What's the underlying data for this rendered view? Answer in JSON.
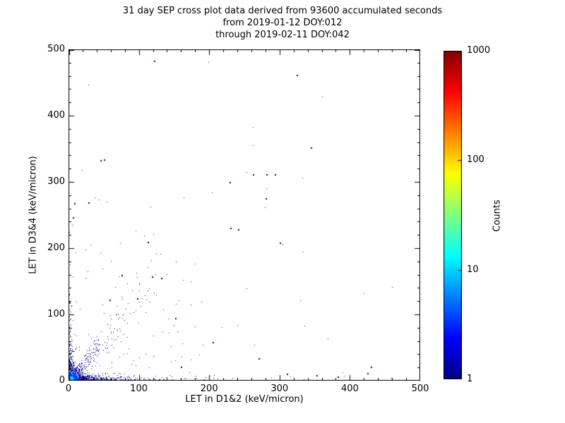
{
  "title": {
    "line1": "31 day SEP cross plot data derived from 93600 accumulated seconds",
    "line2": "from 2019-01-12 DOY:012",
    "line3": "through 2019-02-11 DOY:042"
  },
  "chart_data": {
    "type": "scatter",
    "title": "31 day SEP cross plot data derived from 93600 accumulated seconds from 2019-01-12 DOY:012 through 2019-02-11 DOY:042",
    "xlabel": "LET in D1&2 (keV/micron)",
    "ylabel": "LET in D3&4 (keV/micron)",
    "xlim": [
      0,
      500
    ],
    "ylim": [
      0,
      500
    ],
    "x_ticks": [
      0,
      100,
      200,
      300,
      400,
      500
    ],
    "y_ticks": [
      0,
      100,
      200,
      300,
      400,
      500
    ],
    "grid": false,
    "colorbar": {
      "label": "Counts",
      "scale": "log",
      "min": 1,
      "max": 1000,
      "ticks": [
        1,
        10,
        100,
        1000
      ],
      "colormap": "jet",
      "gradient": [
        [
          0.0,
          "#000080"
        ],
        [
          0.125,
          "#0000ff"
        ],
        [
          0.375,
          "#00ffff"
        ],
        [
          0.625,
          "#ffff00"
        ],
        [
          0.875,
          "#ff0000"
        ],
        [
          1.0,
          "#800000"
        ]
      ]
    },
    "point_color_min_count": "#000080",
    "distribution": {
      "description": "Dense low-count (navy) cluster at origin with high-count cyan/green core, heavy band along x-axis to ~300 keV/micron, band along y-axis to ~280, diffuse diagonal ion track to ~(120,160), sparse single-count events across plane",
      "seed": 20190112,
      "clusters": [
        {
          "name": "x-axis-band",
          "kind": "exp2d",
          "n": 950,
          "sx": 35,
          "sy": 2.5,
          "xmax": 460,
          "ymax": 14
        },
        {
          "name": "y-axis-band",
          "kind": "exp2d",
          "n": 230,
          "sx": 2.0,
          "sy": 40,
          "xmax": 12,
          "ymax": 300
        },
        {
          "name": "origin-blob",
          "kind": "exp2d",
          "n": 950,
          "sx": 7,
          "sy": 7,
          "xmax": 60,
          "ymax": 60
        },
        {
          "name": "diagonal-track",
          "kind": "diag",
          "n": 260,
          "scale": 35,
          "tmax": 170,
          "slope": 1.25,
          "jitter": 0.35
        },
        {
          "name": "sparse-field",
          "kind": "exp2d",
          "n": 140,
          "sx": 110,
          "sy": 110,
          "xmax": 500,
          "ymax": 500
        }
      ],
      "color_rules": [
        {
          "rmax": 3,
          "color": "#00cc66"
        },
        {
          "rmax": 8,
          "color": "#00ccff"
        },
        {
          "rmax": 16,
          "color": "#0040ff"
        },
        {
          "rmax": 99999,
          "color": "#000080"
        }
      ],
      "outliers": [
        [
          121,
          483
        ],
        [
          324,
          462
        ],
        [
          344,
          352
        ],
        [
          281,
          312
        ],
        [
          293,
          312
        ],
        [
          262,
          312
        ],
        [
          229,
          300
        ],
        [
          280,
          276
        ],
        [
          300,
          209
        ],
        [
          230,
          231
        ],
        [
          241,
          229
        ],
        [
          50,
          334
        ],
        [
          45,
          333
        ],
        [
          28,
          269
        ],
        [
          8,
          268
        ],
        [
          6,
          247
        ],
        [
          112,
          210
        ],
        [
          118,
          157
        ],
        [
          132,
          155
        ],
        [
          97,
          124
        ],
        [
          75,
          160
        ],
        [
          58,
          122
        ],
        [
          152,
          95
        ],
        [
          205,
          58
        ],
        [
          270,
          34
        ],
        [
          160,
          21
        ],
        [
          430,
          21
        ],
        [
          310,
          11
        ],
        [
          352,
          9
        ],
        [
          383,
          6
        ],
        [
          425,
          12
        ]
      ]
    }
  }
}
